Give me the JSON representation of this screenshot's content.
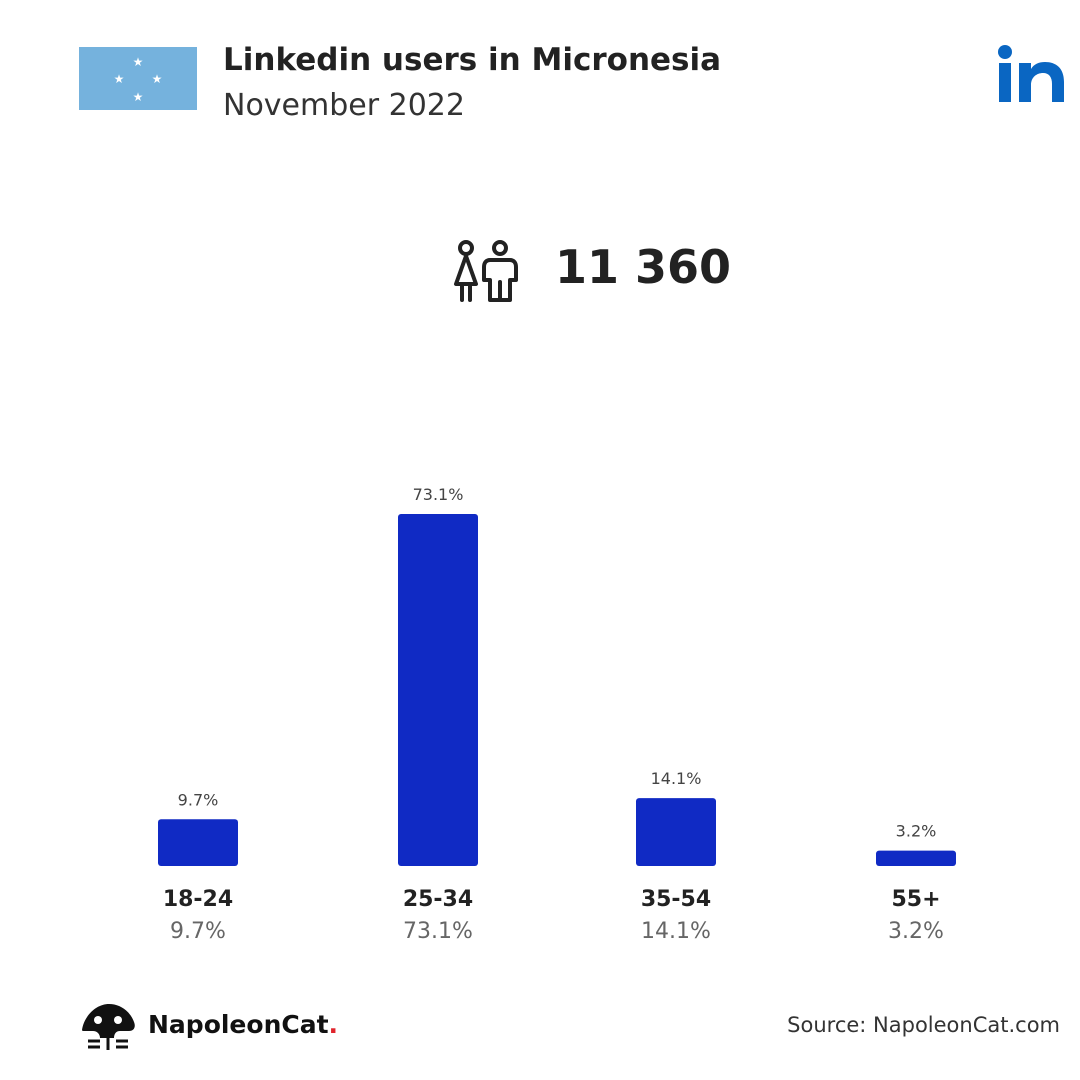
{
  "header": {
    "title": "Linkedin users in Micronesia",
    "subtitle": "November 2022",
    "flag_icon": "micronesia-flag-icon",
    "brand_icon": "linkedin-logo-icon"
  },
  "summary": {
    "icon": "users-icon",
    "total_users": "11 360"
  },
  "colors": {
    "bar": "#102ac4",
    "flag_blue": "#75b2dd",
    "linkedin_blue": "#0a66c2",
    "text_dark": "#222222",
    "text_light": "#555555",
    "brand_dot": "#e0242c"
  },
  "chart_data": {
    "type": "bar",
    "categories": [
      "18-24",
      "25-34",
      "35-54",
      "55+"
    ],
    "values": [
      9.7,
      73.1,
      14.1,
      3.2
    ],
    "value_labels": [
      "9.7%",
      "73.1%",
      "14.1%",
      "3.2%"
    ],
    "unit": "%",
    "ylim": [
      0,
      73.1
    ],
    "grid": false
  },
  "footer": {
    "brand": "NapoleonCat",
    "brand_dot": ".",
    "source": "Source: NapoleonCat.com"
  }
}
